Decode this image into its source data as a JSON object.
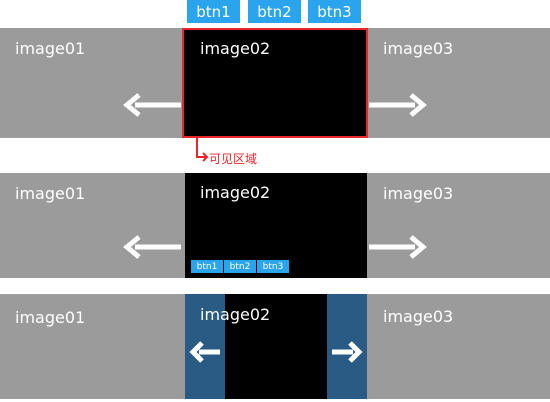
{
  "top_buttons": [
    "btn1",
    "btn2",
    "btn3"
  ],
  "images": {
    "left": "image01",
    "center": "image02",
    "right": "image03"
  },
  "callout": "可见区域",
  "row2_buttons": [
    "btn1",
    "btn2",
    "btn3"
  ],
  "colors": {
    "side_gray": "#9b9b9b",
    "center_black": "#000000",
    "button_blue": "#2aa4ec",
    "shade_blue": "#2a5b84",
    "highlight_red": "#e8262b"
  },
  "icons": [
    "arrow-left-icon",
    "arrow-right-icon"
  ]
}
